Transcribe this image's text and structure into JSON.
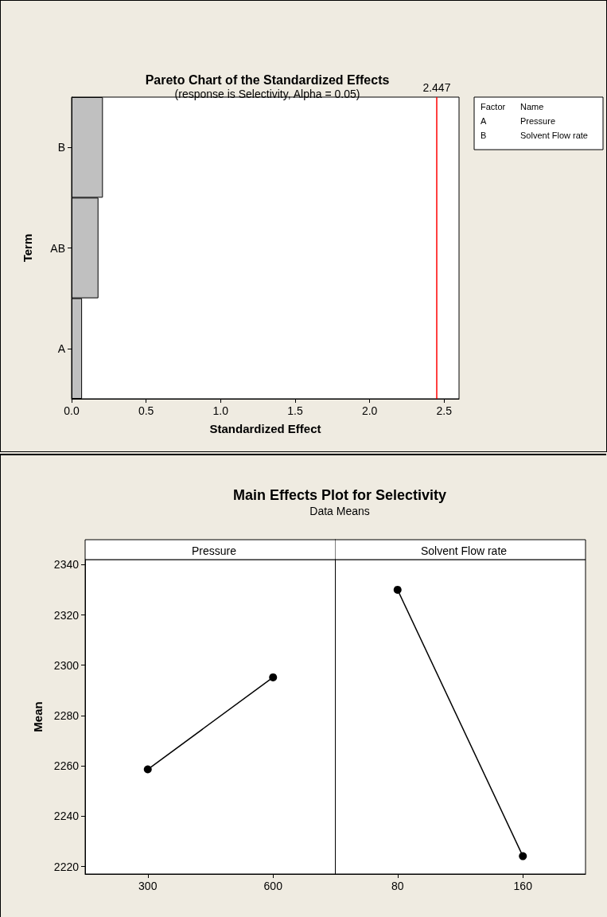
{
  "chart_data": [
    {
      "type": "bar",
      "orientation": "horizontal",
      "title": "Pareto Chart of the Standardized Effects",
      "subtitle": "(response is Selectivity, Alpha = 0.05)",
      "xlabel": "Standardized Effect",
      "ylabel": "Term",
      "categories": [
        "B",
        "AB",
        "A"
      ],
      "values": [
        0.21,
        0.18,
        0.07
      ],
      "color": "#c0c0c0",
      "xlim": [
        0,
        2.6
      ],
      "xticks": [
        {
          "value": 0,
          "label": "0.0"
        },
        {
          "value": 0.5,
          "label": "0.5"
        },
        {
          "value": 1,
          "label": "1.0"
        },
        {
          "value": 1.5,
          "label": "1.5"
        },
        {
          "value": 2,
          "label": "2.0"
        },
        {
          "value": 2.5,
          "label": "2.5"
        }
      ],
      "ref_lines": [
        {
          "axis": "x",
          "value": 2.447,
          "label": "2.447",
          "color": "#ff0000"
        }
      ],
      "annotations": [
        "Factor",
        "Name",
        "A",
        "Pressure",
        "B",
        "Solvent Flow rate"
      ],
      "grid": false
    },
    {
      "type": "line",
      "title": "Main Effects Plot for Selectivity",
      "subtitle": "Data Means",
      "xlabel": "Pressure",
      "ylabel": "Mean",
      "categories": [
        "300",
        "600"
      ],
      "series": [
        {
          "color": "#000000",
          "values": [
            2258.6,
            2295.2
          ]
        }
      ],
      "ylim": [
        2217,
        2342
      ],
      "yticks": [
        2220,
        2240,
        2260,
        2280,
        2300,
        2320,
        2340
      ],
      "marker": "circle",
      "line_style": "solid",
      "grid": false
    },
    {
      "type": "line",
      "xlabel": "Solvent Flow rate",
      "categories": [
        "80",
        "160"
      ],
      "series": [
        {
          "color": "#000000",
          "values": [
            2330.0,
            2224.1
          ]
        }
      ],
      "ylim": [
        2217,
        2342
      ],
      "yticks": [
        2220,
        2240,
        2260,
        2280,
        2300,
        2320,
        2340
      ],
      "tick_labels": "x",
      "marker": "circle",
      "line_style": "solid",
      "grid": false
    }
  ]
}
